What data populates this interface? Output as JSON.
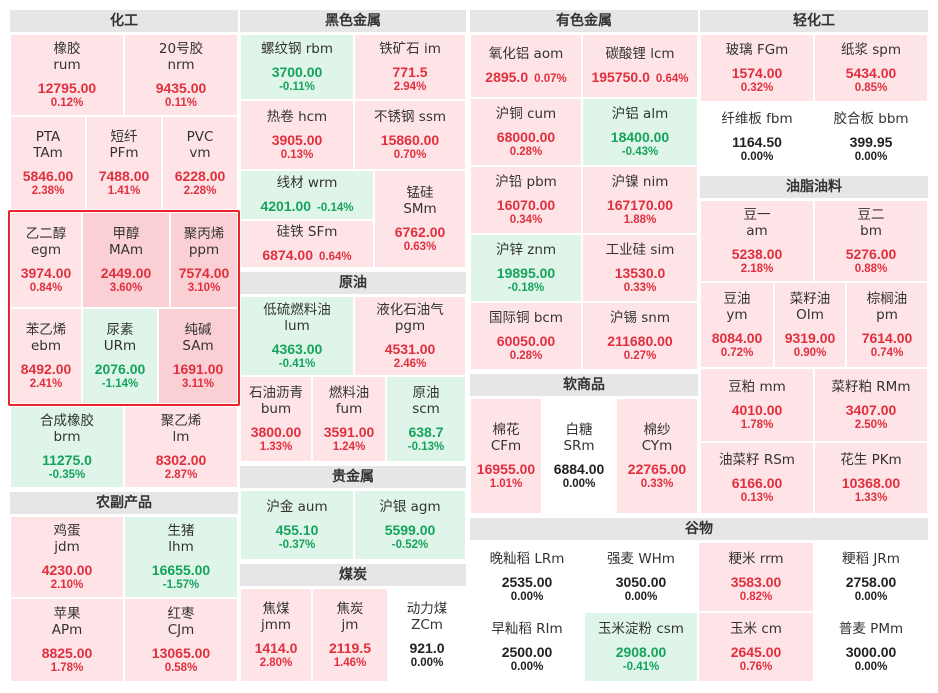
{
  "sections": {
    "chemical": {
      "title": "化工",
      "items": [
        {
          "name": "橡胶",
          "code": "rum",
          "price": "12795.00",
          "change": "0.12%",
          "dir": "up"
        },
        {
          "name": "20号胶",
          "code": "nrm",
          "price": "9435.00",
          "change": "0.11%",
          "dir": "up"
        },
        {
          "name": "PTA",
          "code": "TAm",
          "price": "5846.00",
          "change": "2.38%",
          "dir": "up"
        },
        {
          "name": "短纤",
          "code": "PFm",
          "price": "7488.00",
          "change": "1.41%",
          "dir": "up"
        },
        {
          "name": "PVC",
          "code": "vm",
          "price": "6228.00",
          "change": "2.28%",
          "dir": "up"
        },
        {
          "name": "乙二醇",
          "code": "egm",
          "price": "3974.00",
          "change": "0.84%",
          "dir": "up"
        },
        {
          "name": "甲醇",
          "code": "MAm",
          "price": "2449.00",
          "change": "3.60%",
          "dir": "up"
        },
        {
          "name": "聚丙烯",
          "code": "ppm",
          "price": "7574.00",
          "change": "3.10%",
          "dir": "up"
        },
        {
          "name": "苯乙烯",
          "code": "ebm",
          "price": "8492.00",
          "change": "2.41%",
          "dir": "up"
        },
        {
          "name": "尿素",
          "code": "URm",
          "price": "2076.00",
          "change": "-1.14%",
          "dir": "dn"
        },
        {
          "name": "纯碱",
          "code": "SAm",
          "price": "1691.00",
          "change": "3.11%",
          "dir": "up"
        },
        {
          "name": "合成橡胶",
          "code": "brm",
          "price": "11275.0",
          "change": "-0.35%",
          "dir": "dn"
        },
        {
          "name": "聚乙烯",
          "code": "lm",
          "price": "8302.00",
          "change": "2.87%",
          "dir": "up"
        }
      ]
    },
    "farm": {
      "title": "农副产品",
      "items": [
        {
          "name": "鸡蛋",
          "code": "jdm",
          "price": "4230.00",
          "change": "2.10%",
          "dir": "up"
        },
        {
          "name": "生猪",
          "code": "lhm",
          "price": "16655.00",
          "change": "-1.57%",
          "dir": "dn"
        },
        {
          "name": "苹果",
          "code": "APm",
          "price": "8825.00",
          "change": "1.78%",
          "dir": "up"
        },
        {
          "name": "红枣",
          "code": "CJm",
          "price": "13065.00",
          "change": "0.58%",
          "dir": "up"
        }
      ]
    },
    "ferrous": {
      "title": "黑色金属",
      "items": [
        {
          "name": "螺纹钢",
          "code": "rbm",
          "price": "3700.00",
          "change": "-0.11%",
          "dir": "dn"
        },
        {
          "name": "铁矿石",
          "code": "im",
          "price": "771.5",
          "change": "2.94%",
          "dir": "up"
        },
        {
          "name": "热卷",
          "code": "hcm",
          "price": "3905.00",
          "change": "0.13%",
          "dir": "up"
        },
        {
          "name": "不锈钢",
          "code": "ssm",
          "price": "15860.00",
          "change": "0.70%",
          "dir": "up"
        },
        {
          "name": "线材",
          "code": "wrm",
          "price": "4201.00",
          "change": "-0.14%",
          "dir": "dn"
        },
        {
          "name": "锰硅",
          "code": "SMm",
          "price": "6762.00",
          "change": "0.63%",
          "dir": "up"
        },
        {
          "name": "硅铁",
          "code": "SFm",
          "price": "6874.00",
          "change": "0.64%",
          "dir": "up"
        }
      ]
    },
    "crude": {
      "title": "原油",
      "items": [
        {
          "name": "低硫燃料油",
          "code": "lum",
          "price": "4363.00",
          "change": "-0.41%",
          "dir": "dn"
        },
        {
          "name": "液化石油气",
          "code": "pgm",
          "price": "4531.00",
          "change": "2.46%",
          "dir": "up"
        },
        {
          "name": "石油沥青",
          "code": "bum",
          "price": "3800.00",
          "change": "1.33%",
          "dir": "up"
        },
        {
          "name": "燃料油",
          "code": "fum",
          "price": "3591.00",
          "change": "1.24%",
          "dir": "up"
        },
        {
          "name": "原油",
          "code": "scm",
          "price": "638.7",
          "change": "-0.13%",
          "dir": "dn"
        }
      ]
    },
    "precious": {
      "title": "贵金属",
      "items": [
        {
          "name": "沪金",
          "code": "aum",
          "price": "455.10",
          "change": "-0.37%",
          "dir": "dn"
        },
        {
          "name": "沪银",
          "code": "agm",
          "price": "5599.00",
          "change": "-0.52%",
          "dir": "dn"
        }
      ]
    },
    "coal": {
      "title": "煤炭",
      "items": [
        {
          "name": "焦煤",
          "code": "jmm",
          "price": "1414.0",
          "change": "2.80%",
          "dir": "up"
        },
        {
          "name": "焦炭",
          "code": "jm",
          "price": "2119.5",
          "change": "1.46%",
          "dir": "up"
        },
        {
          "name": "动力煤",
          "code": "ZCm",
          "price": "921.0",
          "change": "0.00%",
          "dir": "fl"
        }
      ]
    },
    "nonferrous": {
      "title": "有色金属",
      "items": [
        {
          "name": "氧化铝",
          "code": "aom",
          "price": "2895.0",
          "change": "0.07%",
          "dir": "up"
        },
        {
          "name": "碳酸锂",
          "code": "lcm",
          "price": "195750.0",
          "change": "0.64%",
          "dir": "up"
        },
        {
          "name": "沪铜",
          "code": "cum",
          "price": "68000.00",
          "change": "0.28%",
          "dir": "up"
        },
        {
          "name": "沪铝",
          "code": "alm",
          "price": "18400.00",
          "change": "-0.43%",
          "dir": "dn"
        },
        {
          "name": "沪铅",
          "code": "pbm",
          "price": "16070.00",
          "change": "0.34%",
          "dir": "up"
        },
        {
          "name": "沪镍",
          "code": "nim",
          "price": "167170.00",
          "change": "1.88%",
          "dir": "up"
        },
        {
          "name": "沪锌",
          "code": "znm",
          "price": "19895.00",
          "change": "-0.18%",
          "dir": "dn"
        },
        {
          "name": "工业硅",
          "code": "sim",
          "price": "13530.0",
          "change": "0.33%",
          "dir": "up"
        },
        {
          "name": "国际铜",
          "code": "bcm",
          "price": "60050.00",
          "change": "0.28%",
          "dir": "up"
        },
        {
          "name": "沪锡",
          "code": "snm",
          "price": "211680.00",
          "change": "0.27%",
          "dir": "up"
        }
      ]
    },
    "softs": {
      "title": "软商品",
      "items": [
        {
          "name": "棉花",
          "code": "CFm",
          "price": "16955.00",
          "change": "1.01%",
          "dir": "up"
        },
        {
          "name": "白糖",
          "code": "SRm",
          "price": "6884.00",
          "change": "0.00%",
          "dir": "fl"
        },
        {
          "name": "棉纱",
          "code": "CYm",
          "price": "22765.00",
          "change": "0.33%",
          "dir": "up"
        }
      ]
    },
    "light": {
      "title": "轻化工",
      "items": [
        {
          "name": "玻璃",
          "code": "FGm",
          "price": "1574.00",
          "change": "0.32%",
          "dir": "up"
        },
        {
          "name": "纸浆",
          "code": "spm",
          "price": "5434.00",
          "change": "0.85%",
          "dir": "up"
        },
        {
          "name": "纤维板",
          "code": "fbm",
          "price": "1164.50",
          "change": "0.00%",
          "dir": "fl"
        },
        {
          "name": "胶合板",
          "code": "bbm",
          "price": "399.95",
          "change": "0.00%",
          "dir": "fl"
        }
      ]
    },
    "oils": {
      "title": "油脂油料",
      "items": [
        {
          "name": "豆一",
          "code": "am",
          "price": "5238.00",
          "change": "2.18%",
          "dir": "up"
        },
        {
          "name": "豆二",
          "code": "bm",
          "price": "5276.00",
          "change": "0.88%",
          "dir": "up"
        },
        {
          "name": "豆油",
          "code": "ym",
          "price": "8084.00",
          "change": "0.72%",
          "dir": "up"
        },
        {
          "name": "菜籽油",
          "code": "OIm",
          "price": "9319.00",
          "change": "0.90%",
          "dir": "up"
        },
        {
          "name": "棕榈油",
          "code": "pm",
          "price": "7614.00",
          "change": "0.74%",
          "dir": "up"
        },
        {
          "name": "豆粕",
          "code": "mm",
          "price": "4010.00",
          "change": "1.78%",
          "dir": "up"
        },
        {
          "name": "菜籽粕",
          "code": "RMm",
          "price": "3407.00",
          "change": "2.50%",
          "dir": "up"
        },
        {
          "name": "油菜籽",
          "code": "RSm",
          "price": "6166.00",
          "change": "0.13%",
          "dir": "up"
        },
        {
          "name": "花生",
          "code": "PKm",
          "price": "10368.00",
          "change": "1.33%",
          "dir": "up"
        }
      ]
    },
    "grains": {
      "title": "谷物",
      "items": [
        {
          "name": "晚籼稻",
          "code": "LRm",
          "price": "2535.00",
          "change": "0.00%",
          "dir": "fl"
        },
        {
          "name": "强麦",
          "code": "WHm",
          "price": "3050.00",
          "change": "0.00%",
          "dir": "fl"
        },
        {
          "name": "粳米",
          "code": "rrm",
          "price": "3583.00",
          "change": "0.82%",
          "dir": "up"
        },
        {
          "name": "粳稻",
          "code": "JRm",
          "price": "2758.00",
          "change": "0.00%",
          "dir": "fl"
        },
        {
          "name": "早籼稻",
          "code": "RIm",
          "price": "2500.00",
          "change": "0.00%",
          "dir": "fl"
        },
        {
          "name": "玉米淀粉",
          "code": "csm",
          "price": "2908.00",
          "change": "-0.41%",
          "dir": "dn"
        },
        {
          "name": "玉米",
          "code": "cm",
          "price": "2645.00",
          "change": "0.76%",
          "dir": "up"
        },
        {
          "name": "普麦",
          "code": "PMm",
          "price": "3000.00",
          "change": "0.00%",
          "dir": "fl"
        }
      ]
    }
  }
}
